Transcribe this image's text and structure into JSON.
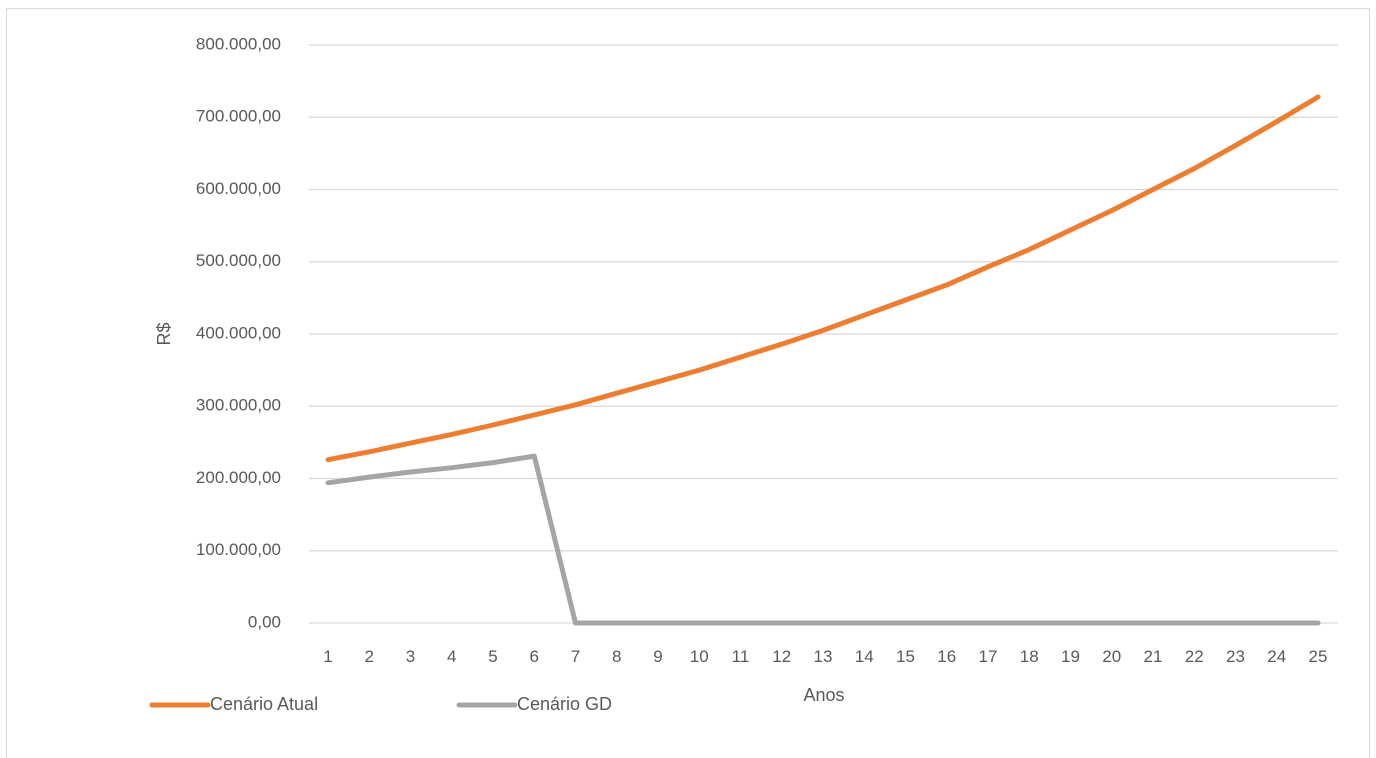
{
  "chart_data": {
    "type": "line",
    "title": "",
    "xlabel": "Anos",
    "ylabel": "R$",
    "ylim": [
      0,
      800000
    ],
    "y_ticks": [
      "0,00",
      "100.000,00",
      "200.000,00",
      "300.000,00",
      "400.000,00",
      "500.000,00",
      "600.000,00",
      "700.000,00",
      "800.000,00"
    ],
    "categories": [
      "1",
      "2",
      "3",
      "4",
      "5",
      "6",
      "7",
      "8",
      "9",
      "10",
      "11",
      "12",
      "13",
      "14",
      "15",
      "16",
      "17",
      "18",
      "19",
      "20",
      "21",
      "22",
      "23",
      "24",
      "25"
    ],
    "grid": true,
    "legend_position": "bottom-left",
    "series": [
      {
        "name": "Cenário Atual",
        "color": "#ed7d31",
        "values": [
          226000,
          237000,
          249000,
          261000,
          274000,
          288000,
          302000,
          318000,
          334000,
          350000,
          368000,
          386000,
          405000,
          426000,
          447000,
          468000,
          493000,
          517000,
          544000,
          571000,
          600000,
          629000,
          661000,
          694000,
          728000
        ]
      },
      {
        "name": "Cenário GD",
        "color": "#a5a5a5",
        "values": [
          194000,
          202000,
          209000,
          215000,
          222000,
          231000,
          0,
          0,
          0,
          0,
          0,
          0,
          0,
          0,
          0,
          0,
          0,
          0,
          0,
          0,
          0,
          0,
          0,
          0,
          0
        ]
      }
    ]
  }
}
